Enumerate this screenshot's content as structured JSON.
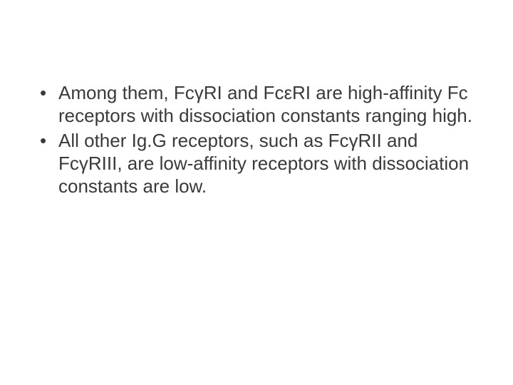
{
  "slide": {
    "background_color": "#ffffff",
    "text_color": "#3a3a3a",
    "font_family": "Arial",
    "font_size_pt": 20,
    "bullets": [
      "Among them, FcγRI and FcεRI are high-affinity Fc receptors with dissociation constants ranging high.",
      "All other Ig.G receptors, such as FcγRII and FcγRIII, are low-affinity receptors with dissociation constants are low."
    ]
  }
}
